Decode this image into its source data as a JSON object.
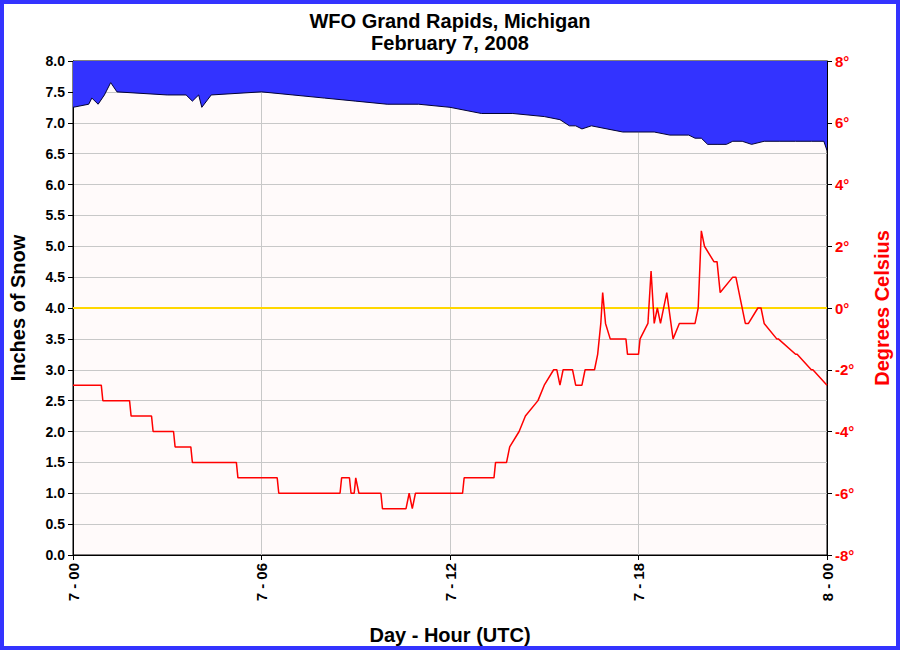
{
  "chart_data": {
    "type": "line",
    "title": "WFO Grand Rapids, Michigan",
    "subtitle": "February 7, 2008",
    "x_label": "Day - Hour (UTC)",
    "y_label": "Inches of Snow",
    "y2_label": "Degrees Celsius",
    "xlim": [
      0,
      24
    ],
    "xticks": [
      {
        "value": 0,
        "label": "7 - 00"
      },
      {
        "value": 6,
        "label": "7 - 06"
      },
      {
        "value": 12,
        "label": "7 - 12"
      },
      {
        "value": 18,
        "label": "7 - 18"
      },
      {
        "value": 24,
        "label": "8 - 00"
      }
    ],
    "ylim": [
      0,
      8
    ],
    "yticks": [
      {
        "value": 0,
        "label": "0.0"
      },
      0.5,
      {
        "value": 1,
        "label": "1.0"
      },
      1.5,
      {
        "value": 2,
        "label": "2.0"
      },
      2.5,
      {
        "value": 3,
        "label": "3.0"
      },
      3.5,
      {
        "value": 4,
        "label": "4.0"
      },
      4.5,
      {
        "value": 5,
        "label": "5.0"
      },
      5.5,
      {
        "value": 6,
        "label": "6.0"
      },
      6.5,
      {
        "value": 7,
        "label": "7.0"
      },
      7.5,
      {
        "value": 8,
        "label": "8.0"
      }
    ],
    "y2lim": [
      -8,
      8
    ],
    "y2ticks": [
      {
        "value": -8,
        "label": "-8°"
      },
      {
        "value": -6,
        "label": "-6°"
      },
      {
        "value": -4,
        "label": "-4°"
      },
      {
        "value": -2,
        "label": "-2°"
      },
      {
        "value": 0,
        "label": "0°"
      },
      {
        "value": 2,
        "label": "2°"
      },
      {
        "value": 4,
        "label": "4°"
      },
      {
        "value": 6,
        "label": "6°"
      },
      {
        "value": 8,
        "label": "8°"
      }
    ],
    "grid": true,
    "freezing_line": {
      "axis": "y2",
      "value": 0,
      "color": "#ffd700"
    },
    "series": [
      {
        "type": "area",
        "color": "#3333ff",
        "x": [
          0,
          0.5,
          0.6,
          0.8,
          1.0,
          1.2,
          1.4,
          3,
          3.6,
          3.8,
          4.0,
          4.1,
          4.4,
          6,
          7,
          8,
          9,
          10,
          11,
          12,
          13,
          14,
          15,
          15.5,
          15.8,
          16,
          16.2,
          16.5,
          17,
          17.5,
          18,
          18.5,
          19,
          19.6,
          19.8,
          20.0,
          20.2,
          20.5,
          20.8,
          21,
          21.3,
          21.6,
          22,
          22.5,
          23,
          23.5,
          23.9,
          24
        ],
        "values": [
          7.25,
          7.3,
          7.4,
          7.3,
          7.45,
          7.65,
          7.5,
          7.45,
          7.45,
          7.35,
          7.45,
          7.25,
          7.45,
          7.5,
          7.45,
          7.4,
          7.35,
          7.3,
          7.3,
          7.25,
          7.15,
          7.15,
          7.1,
          7.05,
          6.95,
          6.95,
          6.9,
          6.95,
          6.9,
          6.85,
          6.85,
          6.85,
          6.8,
          6.8,
          6.75,
          6.75,
          6.65,
          6.65,
          6.65,
          6.7,
          6.7,
          6.65,
          6.7,
          6.7,
          6.7,
          6.7,
          6.7,
          6.55
        ]
      },
      {
        "type": "line",
        "color": "#ff0000",
        "axis": "y2",
        "x": [
          0,
          0.9,
          0.95,
          1.8,
          1.85,
          2.5,
          2.55,
          3.2,
          3.25,
          3.75,
          3.8,
          5.2,
          5.25,
          6.5,
          6.55,
          8.5,
          8.55,
          8.8,
          8.85,
          8.95,
          9.0,
          9.1,
          9.8,
          9.85,
          10.6,
          10.7,
          10.8,
          10.9,
          12.4,
          12.45,
          13.4,
          13.45,
          13.8,
          13.9,
          14.2,
          14.4,
          14.8,
          15.0,
          15.3,
          15.4,
          15.5,
          15.6,
          15.9,
          16.0,
          16.2,
          16.3,
          16.6,
          16.7,
          16.8,
          16.86,
          16.95,
          17.1,
          17.6,
          17.65,
          18.0,
          18.05,
          18.3,
          18.4,
          18.5,
          18.6,
          18.7,
          18.9,
          19.1,
          19.3,
          19.8,
          19.9,
          20.0,
          20.1,
          20.4,
          20.5,
          20.6,
          21.0,
          21.1,
          21.2,
          21.4,
          21.5,
          21.8,
          21.9,
          22.0,
          22.4,
          22.45,
          23.0,
          23.05,
          23.5,
          23.55,
          24
        ],
        "values": [
          -2.5,
          -2.5,
          -3.0,
          -3.0,
          -3.5,
          -3.5,
          -4.0,
          -4.0,
          -4.5,
          -4.5,
          -5.0,
          -5.0,
          -5.5,
          -5.5,
          -6.0,
          -6.0,
          -5.5,
          -5.5,
          -6.0,
          -6.0,
          -5.5,
          -6.0,
          -6.0,
          -6.5,
          -6.5,
          -6.0,
          -6.5,
          -6.0,
          -6.0,
          -5.5,
          -5.5,
          -5.0,
          -5.0,
          -4.5,
          -4.0,
          -3.5,
          -3.0,
          -2.5,
          -2.0,
          -2.0,
          -2.5,
          -2.0,
          -2.0,
          -2.5,
          -2.5,
          -2.0,
          -2.0,
          -1.5,
          -0.5,
          0.5,
          -0.5,
          -1.0,
          -1.0,
          -1.5,
          -1.5,
          -1.0,
          -0.5,
          1.2,
          -0.5,
          0,
          -0.5,
          0.5,
          -1.0,
          -0.5,
          -0.5,
          0,
          2.5,
          2.0,
          1.5,
          1.5,
          0.5,
          1.0,
          1.0,
          0.5,
          -0.5,
          -0.5,
          0,
          0,
          -0.5,
          -1.0,
          -1.0,
          -1.5,
          -1.5,
          -2.0,
          -2.0,
          -2.5
        ]
      }
    ]
  }
}
